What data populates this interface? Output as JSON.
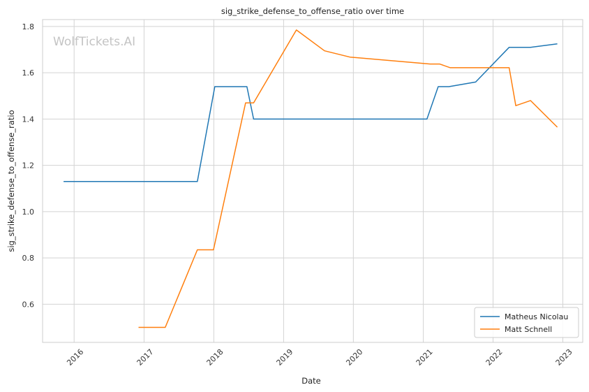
{
  "chart_data": {
    "type": "line",
    "title": "sig_strike_defense_to_offense_ratio over time",
    "xlabel": "Date",
    "ylabel": "sig_strike_defense_to_offense_ratio",
    "watermark": "WolfTickets.AI",
    "xlim": [
      "2015-07-20",
      "2023-04-15"
    ],
    "ylim": [
      0.435,
      1.83
    ],
    "x_ticks": [
      "2016",
      "2017",
      "2018",
      "2019",
      "2020",
      "2021",
      "2022",
      "2023"
    ],
    "y_ticks": [
      "0.6",
      "0.8",
      "1.0",
      "1.2",
      "1.4",
      "1.6",
      "1.8"
    ],
    "grid": true,
    "legend_position": "lower-right",
    "series": [
      {
        "name": "Matheus Nicolau",
        "color": "#1f77b4",
        "x": [
          "2015-11-07",
          "2017-10-07",
          "2018-01-06",
          "2018-06-23",
          "2018-07-28",
          "2021-01-20",
          "2021-03-20",
          "2021-05-15",
          "2021-10-02",
          "2022-03-26",
          "2022-07-16",
          "2022-12-03"
        ],
        "y": [
          1.13,
          1.13,
          1.54,
          1.54,
          1.4,
          1.4,
          1.54,
          1.54,
          1.56,
          1.71,
          1.71,
          1.725
        ]
      },
      {
        "name": "Matt Schnell",
        "color": "#ff7f0e",
        "x": [
          "2016-12-03",
          "2017-04-22",
          "2017-10-07",
          "2017-12-30",
          "2018-06-16",
          "2018-07-28",
          "2019-03-09",
          "2019-08-03",
          "2019-12-14",
          "2021-02-06",
          "2021-03-27",
          "2021-05-22",
          "2022-03-26",
          "2022-04-30",
          "2022-07-16",
          "2022-12-03"
        ],
        "y": [
          0.5,
          0.5,
          0.835,
          0.835,
          1.47,
          1.47,
          1.785,
          1.695,
          1.668,
          1.638,
          1.638,
          1.622,
          1.622,
          1.458,
          1.48,
          1.365
        ]
      }
    ]
  }
}
